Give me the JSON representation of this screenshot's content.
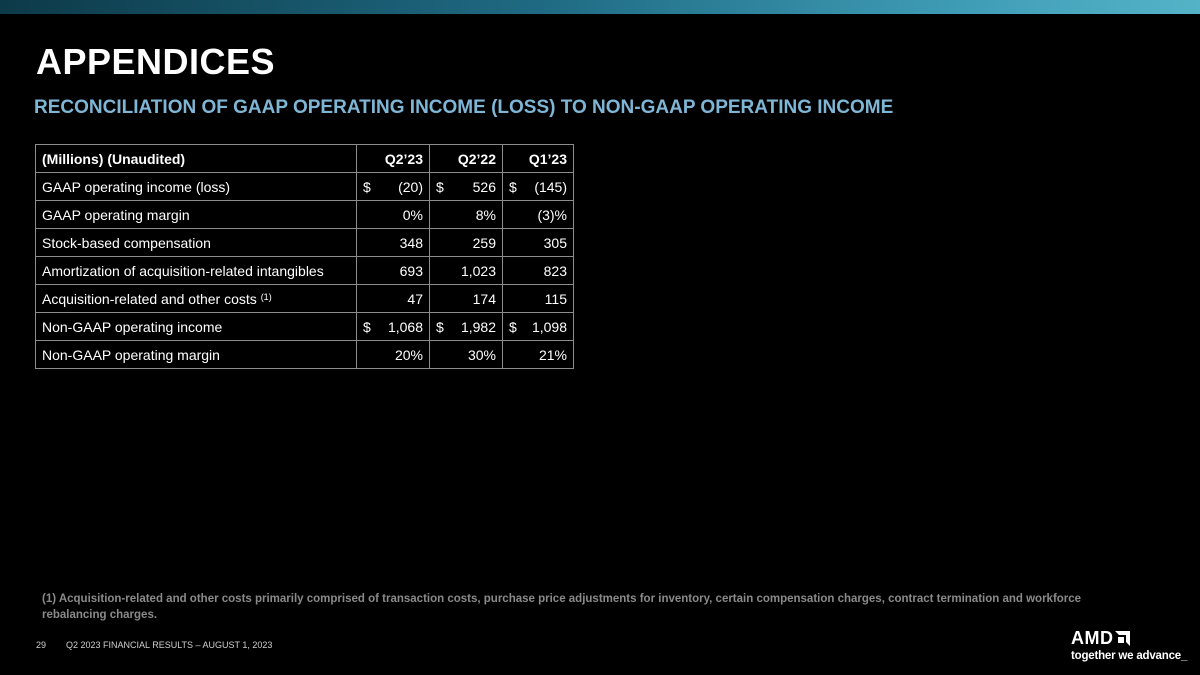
{
  "page": {
    "title": "APPENDICES",
    "subtitle": "RECONCILIATION OF GAAP OPERATING INCOME (LOSS) TO NON-GAAP OPERATING INCOME"
  },
  "table": {
    "header": {
      "label": "(Millions) (Unaudited)",
      "c1": "Q2’23",
      "c2": "Q2’22",
      "c3": "Q1’23"
    },
    "rows": [
      {
        "label": "GAAP operating income (loss)",
        "c1_sym": "$",
        "c1": "(20)",
        "c2_sym": "$",
        "c2": "526",
        "c3_sym": "$",
        "c3": "(145)"
      },
      {
        "label": "GAAP operating margin",
        "c1": "0%",
        "c2": "8%",
        "c3": "(3)%"
      },
      {
        "label": "Stock-based compensation",
        "c1": "348",
        "c2": "259",
        "c3": "305"
      },
      {
        "label": "Amortization of acquisition-related intangibles",
        "c1": "693",
        "c2": "1,023",
        "c3": "823"
      },
      {
        "label": "Acquisition-related and other costs",
        "note": "(1)",
        "c1": "47",
        "c2": "174",
        "c3": "115"
      },
      {
        "label": "Non-GAAP operating income",
        "c1_sym": "$",
        "c1": "1,068",
        "c2_sym": "$",
        "c2": "1,982",
        "c3_sym": "$",
        "c3": "1,098"
      },
      {
        "label": "Non-GAAP operating margin",
        "c1": "20%",
        "c2": "30%",
        "c3": "21%"
      }
    ]
  },
  "footnote": "(1) Acquisition-related and other costs primarily comprised of transaction costs, purchase price adjustments for inventory, certain compensation charges, contract termination and workforce rebalancing charges.",
  "footer": {
    "page_number": "29",
    "text": "Q2 2023 FINANCIAL RESULTS – AUGUST 1, 2023"
  },
  "logo": {
    "name": "AMD",
    "tagline": "together we advance_"
  },
  "colors": {
    "background": "#000000",
    "subtitle": "#7fb6d6",
    "accent_bar": "#3f9cb5"
  }
}
